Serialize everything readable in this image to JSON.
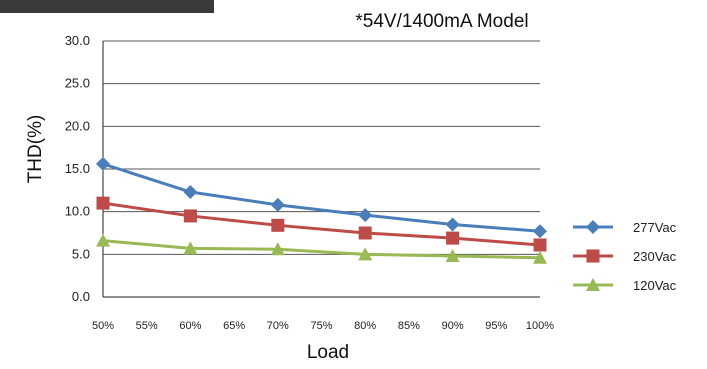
{
  "chart_data": {
    "type": "line",
    "title": "*54V/1400mA Model",
    "xlabel": "Load",
    "ylabel": "THD(%)",
    "x_ticks": [
      "50%",
      "55%",
      "60%",
      "65%",
      "70%",
      "75%",
      "80%",
      "85%",
      "90%",
      "95%",
      "100%"
    ],
    "x_range": [
      50,
      100
    ],
    "y_ticks": [
      "0.0",
      "5.0",
      "10.0",
      "15.0",
      "20.0",
      "25.0",
      "30.0"
    ],
    "ylim": [
      0,
      30
    ],
    "grid": "horizontal",
    "legend_position": "right",
    "series": [
      {
        "name": "277Vac",
        "color": "#4a7ebb",
        "marker": "diamond",
        "x": [
          50,
          60,
          70,
          80,
          90,
          100
        ],
        "values": [
          15.6,
          12.3,
          10.8,
          9.6,
          8.5,
          7.7
        ]
      },
      {
        "name": "230Vac",
        "color": "#be4b48",
        "marker": "square",
        "x": [
          50,
          60,
          70,
          80,
          90,
          100
        ],
        "values": [
          11.0,
          9.5,
          8.4,
          7.5,
          6.9,
          6.1
        ]
      },
      {
        "name": "120Vac",
        "color": "#98b954",
        "marker": "triangle",
        "x": [
          50,
          60,
          70,
          80,
          90,
          100
        ],
        "values": [
          6.6,
          5.7,
          5.6,
          5.0,
          4.8,
          4.6
        ]
      }
    ]
  }
}
